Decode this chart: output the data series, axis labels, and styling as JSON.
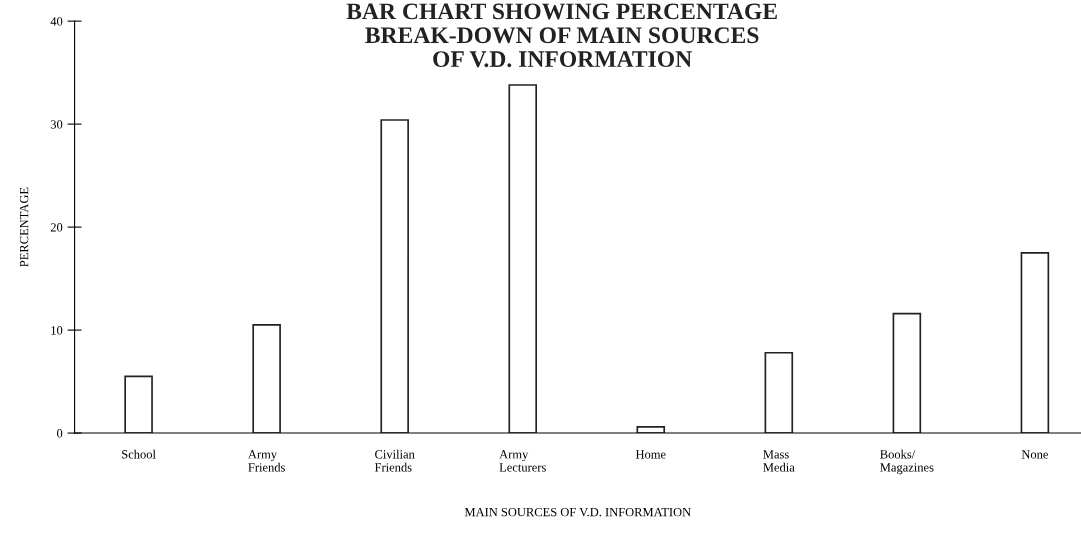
{
  "chart_data": {
    "type": "bar",
    "title": "BAR CHART SHOWING PERCENTAGE\nBREAK-DOWN OF MAIN SOURCES\nOF V.D. INFORMATION",
    "xlabel": "MAIN SOURCES OF V.D. INFORMATION",
    "ylabel": "PERCENTAGE",
    "categories": [
      "School",
      "Army\nFriends",
      "Civilian\nFriends",
      "Army\nLecturers",
      "Home",
      "Mass\nMedia",
      "Books/\nMagazines",
      "None"
    ],
    "values": [
      5.5,
      10.5,
      30.4,
      33.8,
      0.6,
      7.8,
      11.6,
      17.5
    ],
    "color": "#ffffff",
    "ylim": [
      0,
      40
    ],
    "yticks": [
      0,
      10,
      20,
      30,
      40
    ],
    "grid": false
  }
}
